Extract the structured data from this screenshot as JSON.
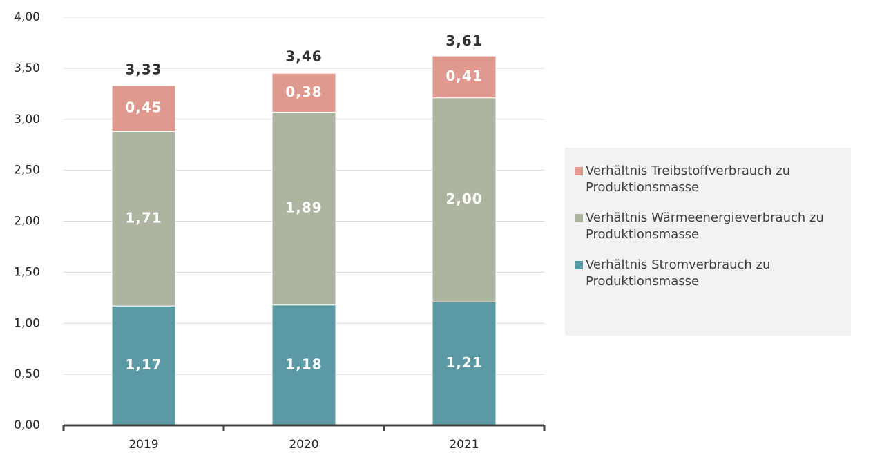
{
  "chart_data": {
    "type": "stacked_bar",
    "categories": [
      "2019",
      "2020",
      "2021"
    ],
    "series": [
      {
        "name": "Verhältnis Stromverbrauch zu Produktionsmasse",
        "color": "#5b9aa5",
        "values": [
          1.17,
          1.18,
          1.21
        ],
        "value_labels": [
          "1,17",
          "1,18",
          "1,21"
        ]
      },
      {
        "name": "Verhältnis Wärmeenergieverbrauch zu Produktionsmasse",
        "color": "#adb5a0",
        "values": [
          1.71,
          1.89,
          2.0
        ],
        "value_labels": [
          "1,71",
          "1,89",
          "2,00"
        ]
      },
      {
        "name": "Verhältnis Treibstoffverbrauch zu Produktionsmasse",
        "color": "#e0998f",
        "values": [
          0.45,
          0.38,
          0.41
        ],
        "value_labels": [
          "0,45",
          "0,38",
          "0,41"
        ]
      }
    ],
    "totals": [
      3.33,
      3.46,
      3.61
    ],
    "total_labels": [
      "3,33",
      "3,46",
      "3,61"
    ],
    "ylim": [
      0,
      4
    ],
    "yticks": [
      {
        "value": 0,
        "label": "0,00"
      },
      {
        "value": 0.5,
        "label": "0,50"
      },
      {
        "value": 1,
        "label": "1,00"
      },
      {
        "value": 1.5,
        "label": "1,50"
      },
      {
        "value": 2,
        "label": "2,00"
      },
      {
        "value": 2.5,
        "label": "2,50"
      },
      {
        "value": 3,
        "label": "3,00"
      },
      {
        "value": 3.5,
        "label": "3,50"
      },
      {
        "value": 4,
        "label": "4,00"
      }
    ],
    "grid": true,
    "legend": "right"
  }
}
